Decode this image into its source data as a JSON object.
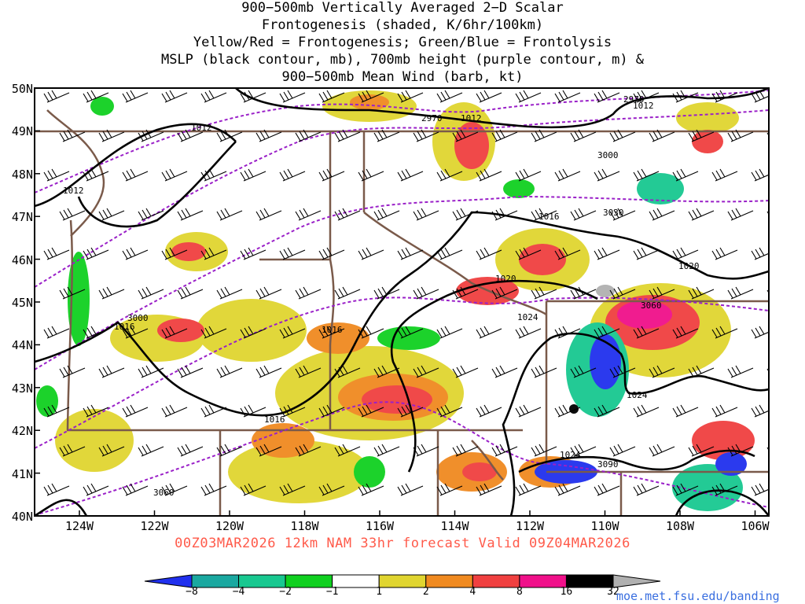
{
  "title": {
    "line1": "900−500mb Vertically Averaged 2−D Scalar",
    "line2": "Frontogenesis (shaded, K/6hr/100km)",
    "line3": "Yellow/Red = Frontogenesis;  Green/Blue = Frontolysis",
    "line4": "MSLP (black contour, mb), 700mb height (purple contour, m) &",
    "line5": "900−500mb Mean Wind (barb, kt)"
  },
  "lat_labels": [
    "50N",
    "49N",
    "48N",
    "47N",
    "46N",
    "45N",
    "44N",
    "43N",
    "42N",
    "41N",
    "40N"
  ],
  "lon_labels": [
    "124W",
    "122W",
    "120W",
    "118W",
    "116W",
    "114W",
    "112W",
    "110W",
    "108W",
    "106W"
  ],
  "valid_line": "00Z03MAR2026 12km NAM 33hr forecast Valid 09Z04MAR2026",
  "colorbar": {
    "ticks": [
      "−8",
      "−4",
      "−2",
      "−1",
      "1",
      "2",
      "4",
      "8",
      "16",
      "32"
    ],
    "colors": [
      "#2030ee",
      "#1aa8a0",
      "#18c890",
      "#10d020",
      "#ffffff",
      "#e0d530",
      "#f08a20",
      "#f04040",
      "#f0108a",
      "#000000",
      "#b0b0b0"
    ]
  },
  "contour_labels": {
    "mslp": [
      "1012",
      "1012",
      "1012",
      "1012",
      "1016",
      "1016",
      "1016",
      "1016",
      "1020",
      "1020",
      "1024",
      "1024",
      "1024"
    ],
    "height": [
      "2970",
      "2970",
      "3000",
      "3000",
      "3030",
      "3060",
      "3060",
      "3090"
    ]
  },
  "credit": "moe.met.fsu.edu/banding"
}
